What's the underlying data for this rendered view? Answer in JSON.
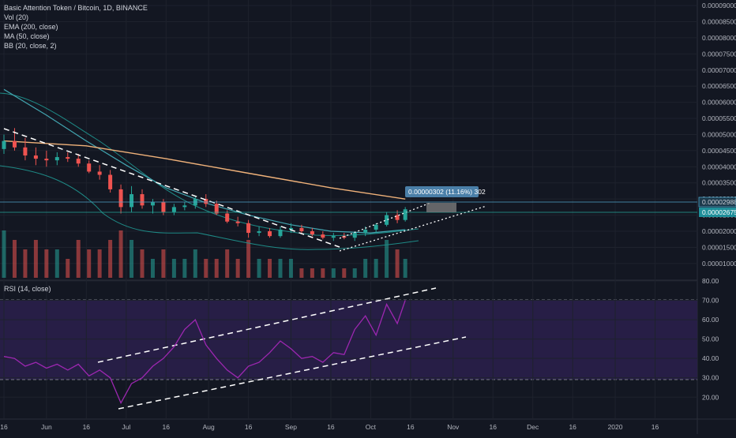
{
  "header": {
    "title": "Basic Attention Token / Bitcoin, 1D, BINANCE",
    "indicators": [
      "Vol (20)",
      "EMA (200, close)",
      "MA (50, close)",
      "BB (20, close, 2)"
    ]
  },
  "rsi_panel": {
    "label": "RSI (14, close)"
  },
  "price_axis": {
    "ticks": [
      "0.00009000",
      "0.00008500",
      "0.00008000",
      "0.00007500",
      "0.00007000",
      "0.00006500",
      "0.00006000",
      "0.00005500",
      "0.00005000",
      "0.00004500",
      "0.00004000",
      "0.00003500",
      "0.00003000",
      "0.00002500",
      "0.00002000",
      "0.00001500",
      "0.00001000"
    ],
    "last_price_label": "0.00002675",
    "crosshair_label": "0.00002988"
  },
  "rsi_axis": {
    "ticks": [
      "80.00",
      "70.00",
      "60.00",
      "50.00",
      "40.00",
      "30.00",
      "20.00"
    ]
  },
  "time_axis": {
    "ticks": [
      "16",
      "Jun",
      "16",
      "Jul",
      "16",
      "Aug",
      "16",
      "Sep",
      "16",
      "Oct",
      "16",
      "Nov",
      "16",
      "Dec",
      "16",
      "2020",
      "16"
    ]
  },
  "measure_label": "0.00000302 (11.16%) 302",
  "colors": {
    "background": "#131722",
    "up": "#26a69a",
    "down": "#ef5350",
    "ema": "#f0b27a",
    "ma": "#42a5b0",
    "bb": "#1e8a86",
    "rsi": "#9c27b0",
    "rsi_band": "#2a1f4a",
    "tag": "#1f8f9a"
  },
  "chart_data": [
    {
      "type": "candlestick",
      "title": "Basic Attention Token / Bitcoin, 1D, BINANCE",
      "ylim": [
        8.5e-06,
        9.05e-05
      ],
      "x_range": [
        "2019-05-16",
        "2020-01-31"
      ],
      "ohlc": [
        {
          "date": "2019-05-16",
          "o": 4.55e-05,
          "h": 5e-05,
          "l": 4.4e-05,
          "c": 4.8e-05
        },
        {
          "date": "2019-05-20",
          "o": 4.8e-05,
          "h": 5.2e-05,
          "l": 4.5e-05,
          "c": 4.6e-05
        },
        {
          "date": "2019-05-24",
          "o": 4.6e-05,
          "h": 4.9e-05,
          "l": 4.2e-05,
          "c": 4.35e-05
        },
        {
          "date": "2019-05-28",
          "o": 4.35e-05,
          "h": 4.6e-05,
          "l": 4.05e-05,
          "c": 4.25e-05
        },
        {
          "date": "2019-06-01",
          "o": 4.25e-05,
          "h": 4.5e-05,
          "l": 4e-05,
          "c": 4.2e-05
        },
        {
          "date": "2019-06-05",
          "o": 4.2e-05,
          "h": 4.45e-05,
          "l": 4.05e-05,
          "c": 4.3e-05
        },
        {
          "date": "2019-06-09",
          "o": 4.3e-05,
          "h": 4.45e-05,
          "l": 4.15e-05,
          "c": 4.25e-05
        },
        {
          "date": "2019-06-13",
          "o": 4.25e-05,
          "h": 4.4e-05,
          "l": 4e-05,
          "c": 4.1e-05
        },
        {
          "date": "2019-06-17",
          "o": 4.1e-05,
          "h": 4.2e-05,
          "l": 3.8e-05,
          "c": 3.85e-05
        },
        {
          "date": "2019-06-21",
          "o": 3.85e-05,
          "h": 4.05e-05,
          "l": 3.6e-05,
          "c": 3.75e-05
        },
        {
          "date": "2019-06-25",
          "o": 3.75e-05,
          "h": 3.9e-05,
          "l": 3.2e-05,
          "c": 3.3e-05
        },
        {
          "date": "2019-06-29",
          "o": 3.3e-05,
          "h": 3.45e-05,
          "l": 2.55e-05,
          "c": 2.75e-05
        },
        {
          "date": "2019-07-03",
          "o": 2.75e-05,
          "h": 3.4e-05,
          "l": 2.6e-05,
          "c": 3.15e-05
        },
        {
          "date": "2019-07-07",
          "o": 3.15e-05,
          "h": 3.3e-05,
          "l": 2.7e-05,
          "c": 2.8e-05
        },
        {
          "date": "2019-07-11",
          "o": 2.8e-05,
          "h": 3e-05,
          "l": 2.55e-05,
          "c": 2.9e-05
        },
        {
          "date": "2019-07-15",
          "o": 2.9e-05,
          "h": 3e-05,
          "l": 2.5e-05,
          "c": 2.6e-05
        },
        {
          "date": "2019-07-19",
          "o": 2.6e-05,
          "h": 2.85e-05,
          "l": 2.5e-05,
          "c": 2.75e-05
        },
        {
          "date": "2019-07-23",
          "o": 2.75e-05,
          "h": 2.9e-05,
          "l": 2.65e-05,
          "c": 2.8e-05
        },
        {
          "date": "2019-07-27",
          "o": 2.8e-05,
          "h": 3.1e-05,
          "l": 2.7e-05,
          "c": 3e-05
        },
        {
          "date": "2019-07-31",
          "o": 3e-05,
          "h": 3.15e-05,
          "l": 2.75e-05,
          "c": 2.85e-05
        },
        {
          "date": "2019-08-04",
          "o": 2.85e-05,
          "h": 2.95e-05,
          "l": 2.5e-05,
          "c": 2.55e-05
        },
        {
          "date": "2019-08-08",
          "o": 2.55e-05,
          "h": 2.65e-05,
          "l": 2.25e-05,
          "c": 2.3e-05
        },
        {
          "date": "2019-08-12",
          "o": 2.3e-05,
          "h": 2.45e-05,
          "l": 2.15e-05,
          "c": 2.25e-05
        },
        {
          "date": "2019-08-16",
          "o": 2.25e-05,
          "h": 2.35e-05,
          "l": 1.8e-05,
          "c": 1.95e-05
        },
        {
          "date": "2019-08-20",
          "o": 1.95e-05,
          "h": 2.15e-05,
          "l": 1.85e-05,
          "c": 2e-05
        },
        {
          "date": "2019-08-24",
          "o": 2e-05,
          "h": 2.1e-05,
          "l": 1.8e-05,
          "c": 1.85e-05
        },
        {
          "date": "2019-08-28",
          "o": 1.85e-05,
          "h": 2.15e-05,
          "l": 1.8e-05,
          "c": 2.05e-05
        },
        {
          "date": "2019-09-01",
          "o": 2.05e-05,
          "h": 2.25e-05,
          "l": 1.95e-05,
          "c": 2.1e-05
        },
        {
          "date": "2019-09-05",
          "o": 2.1e-05,
          "h": 2.2e-05,
          "l": 1.95e-05,
          "c": 2e-05
        },
        {
          "date": "2019-09-09",
          "o": 2e-05,
          "h": 2.1e-05,
          "l": 1.85e-05,
          "c": 1.9e-05
        },
        {
          "date": "2019-09-13",
          "o": 1.9e-05,
          "h": 2e-05,
          "l": 1.75e-05,
          "c": 1.8e-05
        },
        {
          "date": "2019-09-17",
          "o": 1.8e-05,
          "h": 1.95e-05,
          "l": 1.7e-05,
          "c": 1.85e-05
        },
        {
          "date": "2019-09-21",
          "o": 1.85e-05,
          "h": 1.95e-05,
          "l": 1.75e-05,
          "c": 1.8e-05
        },
        {
          "date": "2019-09-25",
          "o": 1.8e-05,
          "h": 2e-05,
          "l": 1.7e-05,
          "c": 1.95e-05
        },
        {
          "date": "2019-09-29",
          "o": 1.95e-05,
          "h": 2.15e-05,
          "l": 1.85e-05,
          "c": 2.05e-05
        },
        {
          "date": "2019-10-03",
          "o": 2.05e-05,
          "h": 2.25e-05,
          "l": 1.95e-05,
          "c": 2.2e-05
        },
        {
          "date": "2019-10-07",
          "o": 2.2e-05,
          "h": 2.6e-05,
          "l": 2.15e-05,
          "c": 2.5e-05
        },
        {
          "date": "2019-10-11",
          "o": 2.5e-05,
          "h": 2.65e-05,
          "l": 2.25e-05,
          "c": 2.35e-05
        },
        {
          "date": "2019-10-14",
          "o": 2.35e-05,
          "h": 2.75e-05,
          "l": 2.3e-05,
          "c": 2.68e-05
        }
      ],
      "ema_200": [
        {
          "date": "2019-05-16",
          "y": 4.8e-05
        },
        {
          "date": "2019-06-16",
          "y": 4.65e-05
        },
        {
          "date": "2019-07-16",
          "y": 4.25e-05
        },
        {
          "date": "2019-08-16",
          "y": 3.8e-05
        },
        {
          "date": "2019-09-16",
          "y": 3.35e-05
        },
        {
          "date": "2019-10-14",
          "y": 3e-05
        }
      ],
      "ma_50": [
        {
          "date": "2019-05-16",
          "y": 6.4e-05
        },
        {
          "date": "2019-06-01",
          "y": 5.6e-05
        },
        {
          "date": "2019-06-16",
          "y": 4.8e-05
        },
        {
          "date": "2019-07-01",
          "y": 4.05e-05
        },
        {
          "date": "2019-07-16",
          "y": 3.35e-05
        },
        {
          "date": "2019-08-01",
          "y": 2.85e-05
        },
        {
          "date": "2019-08-16",
          "y": 2.5e-05
        },
        {
          "date": "2019-09-01",
          "y": 2.2e-05
        },
        {
          "date": "2019-09-16",
          "y": 2e-05
        },
        {
          "date": "2019-10-01",
          "y": 1.95e-05
        },
        {
          "date": "2019-10-14",
          "y": 2.05e-05
        }
      ],
      "volume": [
        {
          "date": "2019-05-16",
          "v": 5,
          "up": true
        },
        {
          "date": "2019-05-20",
          "v": 4,
          "up": false
        },
        {
          "date": "2019-05-24",
          "v": 3,
          "up": false
        },
        {
          "date": "2019-05-28",
          "v": 4,
          "up": false
        },
        {
          "date": "2019-06-01",
          "v": 3,
          "up": false
        },
        {
          "date": "2019-06-05",
          "v": 3,
          "up": true
        },
        {
          "date": "2019-06-09",
          "v": 2,
          "up": false
        },
        {
          "date": "2019-06-13",
          "v": 4,
          "up": false
        },
        {
          "date": "2019-06-17",
          "v": 3,
          "up": false
        },
        {
          "date": "2019-06-21",
          "v": 3,
          "up": false
        },
        {
          "date": "2019-06-25",
          "v": 4,
          "up": false
        },
        {
          "date": "2019-06-29",
          "v": 5,
          "up": false
        },
        {
          "date": "2019-07-03",
          "v": 4,
          "up": true
        },
        {
          "date": "2019-07-07",
          "v": 3,
          "up": false
        },
        {
          "date": "2019-07-11",
          "v": 2,
          "up": true
        },
        {
          "date": "2019-07-15",
          "v": 3,
          "up": false
        },
        {
          "date": "2019-07-19",
          "v": 2,
          "up": true
        },
        {
          "date": "2019-07-23",
          "v": 2,
          "up": true
        },
        {
          "date": "2019-07-27",
          "v": 3,
          "up": true
        },
        {
          "date": "2019-07-31",
          "v": 2,
          "up": false
        },
        {
          "date": "2019-08-04",
          "v": 2,
          "up": false
        },
        {
          "date": "2019-08-08",
          "v": 3,
          "up": false
        },
        {
          "date": "2019-08-12",
          "v": 2,
          "up": false
        },
        {
          "date": "2019-08-16",
          "v": 4,
          "up": false
        },
        {
          "date": "2019-08-20",
          "v": 2,
          "up": true
        },
        {
          "date": "2019-08-24",
          "v": 2,
          "up": false
        },
        {
          "date": "2019-08-28",
          "v": 2,
          "up": true
        },
        {
          "date": "2019-09-01",
          "v": 2,
          "up": true
        },
        {
          "date": "2019-09-05",
          "v": 1,
          "up": false
        },
        {
          "date": "2019-09-09",
          "v": 1,
          "up": false
        },
        {
          "date": "2019-09-13",
          "v": 1,
          "up": false
        },
        {
          "date": "2019-09-17",
          "v": 1,
          "up": true
        },
        {
          "date": "2019-09-21",
          "v": 1,
          "up": false
        },
        {
          "date": "2019-09-25",
          "v": 1,
          "up": true
        },
        {
          "date": "2019-09-29",
          "v": 2,
          "up": true
        },
        {
          "date": "2019-10-03",
          "v": 2,
          "up": true
        },
        {
          "date": "2019-10-07",
          "v": 4,
          "up": true
        },
        {
          "date": "2019-10-11",
          "v": 3,
          "up": false
        },
        {
          "date": "2019-10-14",
          "v": 2,
          "up": true
        }
      ]
    },
    {
      "type": "line",
      "title": "RSI (14, close)",
      "ylim": [
        14,
        80
      ],
      "bands": [
        30,
        70
      ],
      "series": [
        {
          "name": "RSI (14, close)",
          "values": [
            {
              "date": "2019-05-16",
              "y": 41
            },
            {
              "date": "2019-05-20",
              "y": 40
            },
            {
              "date": "2019-05-24",
              "y": 36
            },
            {
              "date": "2019-05-28",
              "y": 38
            },
            {
              "date": "2019-06-01",
              "y": 35
            },
            {
              "date": "2019-06-05",
              "y": 37
            },
            {
              "date": "2019-06-09",
              "y": 34
            },
            {
              "date": "2019-06-13",
              "y": 37
            },
            {
              "date": "2019-06-17",
              "y": 31
            },
            {
              "date": "2019-06-21",
              "y": 34
            },
            {
              "date": "2019-06-25",
              "y": 30
            },
            {
              "date": "2019-06-29",
              "y": 17
            },
            {
              "date": "2019-07-03",
              "y": 27
            },
            {
              "date": "2019-07-07",
              "y": 30
            },
            {
              "date": "2019-07-11",
              "y": 36
            },
            {
              "date": "2019-07-15",
              "y": 40
            },
            {
              "date": "2019-07-19",
              "y": 46
            },
            {
              "date": "2019-07-23",
              "y": 55
            },
            {
              "date": "2019-07-27",
              "y": 60
            },
            {
              "date": "2019-07-31",
              "y": 47
            },
            {
              "date": "2019-08-04",
              "y": 40
            },
            {
              "date": "2019-08-08",
              "y": 34
            },
            {
              "date": "2019-08-12",
              "y": 30
            },
            {
              "date": "2019-08-16",
              "y": 36
            },
            {
              "date": "2019-08-20",
              "y": 38
            },
            {
              "date": "2019-08-24",
              "y": 43
            },
            {
              "date": "2019-08-28",
              "y": 49
            },
            {
              "date": "2019-09-01",
              "y": 45
            },
            {
              "date": "2019-09-05",
              "y": 40
            },
            {
              "date": "2019-09-09",
              "y": 41
            },
            {
              "date": "2019-09-13",
              "y": 38
            },
            {
              "date": "2019-09-17",
              "y": 43
            },
            {
              "date": "2019-09-21",
              "y": 42
            },
            {
              "date": "2019-09-25",
              "y": 55
            },
            {
              "date": "2019-09-29",
              "y": 62
            },
            {
              "date": "2019-10-03",
              "y": 52
            },
            {
              "date": "2019-10-07",
              "y": 68
            },
            {
              "date": "2019-10-11",
              "y": 58
            },
            {
              "date": "2019-10-14",
              "y": 70
            }
          ]
        }
      ]
    }
  ]
}
